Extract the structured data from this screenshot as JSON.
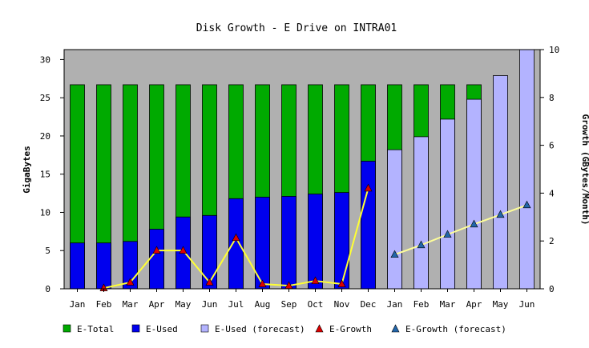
{
  "chart_data": {
    "type": "bar",
    "title": "Disk Growth - E Drive on INTRA01",
    "ylabel": "GigaBytes",
    "y2label": "Growth (GBytes/Month)",
    "ylim": [
      0,
      31.3
    ],
    "y2lim": [
      0,
      10
    ],
    "yticks": [
      "0",
      "5",
      "10",
      "15",
      "20",
      "25",
      "30"
    ],
    "y2ticks": [
      "0",
      "2",
      "4",
      "6",
      "8",
      "10"
    ],
    "categories": [
      "Jan",
      "Feb",
      "Mar",
      "Apr",
      "May",
      "Jun",
      "Jul",
      "Aug",
      "Sep",
      "Oct",
      "Nov",
      "Dec",
      "Jan",
      "Feb",
      "Mar",
      "Apr",
      "May",
      "Jun"
    ],
    "grid": false,
    "legend_position": "bottom",
    "plot_background": "#b0b0b0",
    "series": [
      {
        "name": "E-Total",
        "color": "#00aa00",
        "values": [
          26.7,
          26.7,
          26.7,
          26.7,
          26.7,
          26.7,
          26.7,
          26.7,
          26.7,
          26.7,
          26.7,
          26.7,
          26.7,
          26.7,
          26.7,
          26.7,
          null,
          null
        ]
      },
      {
        "name": "E-Used",
        "color": "#0000ee",
        "values": [
          6.0,
          6.0,
          6.2,
          7.8,
          9.4,
          9.6,
          11.8,
          12.0,
          12.1,
          12.4,
          12.6,
          16.7,
          null,
          null,
          null,
          null,
          null,
          null
        ]
      },
      {
        "name": "E-Used (forecast)",
        "color": "#b3b3ff",
        "values": [
          null,
          null,
          null,
          null,
          null,
          null,
          null,
          null,
          null,
          null,
          null,
          null,
          18.2,
          19.9,
          22.2,
          24.8,
          27.9,
          31.3
        ]
      },
      {
        "name": "E-Growth",
        "color": "#dd0000",
        "line_color": "#ffff33",
        "values": [
          null,
          0.03,
          0.27,
          1.6,
          1.6,
          0.27,
          2.13,
          0.2,
          0.13,
          0.33,
          0.2,
          4.2,
          null,
          null,
          null,
          null,
          null,
          null
        ]
      },
      {
        "name": "E-Growth (forecast)",
        "color": "#2266aa",
        "line_color": "#ffff99",
        "values": [
          null,
          null,
          null,
          null,
          null,
          null,
          null,
          null,
          null,
          null,
          null,
          null,
          1.43,
          1.83,
          2.27,
          2.7,
          3.1,
          3.5
        ]
      }
    ]
  }
}
